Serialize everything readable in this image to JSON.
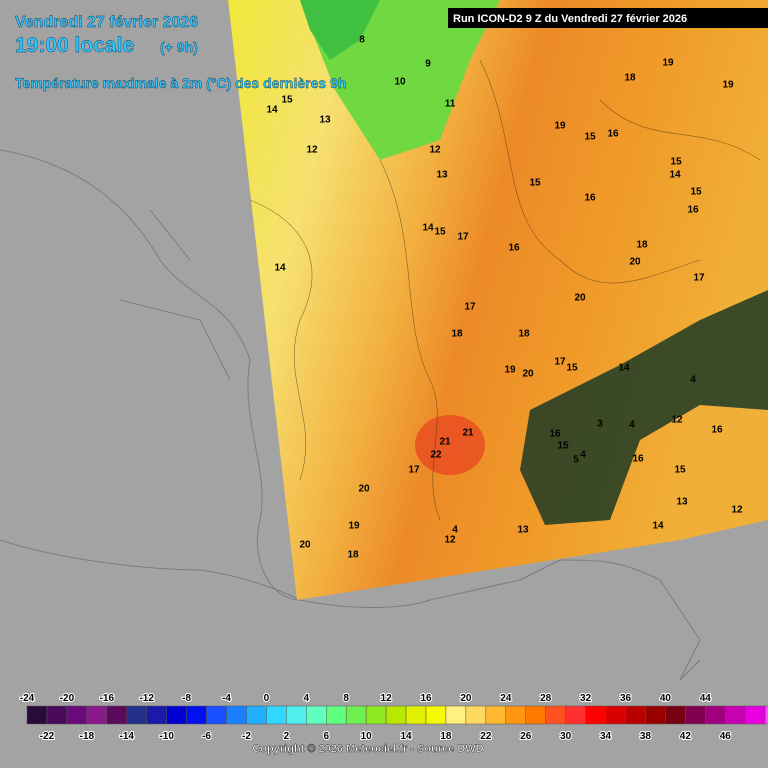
{
  "header": {
    "date": "Vendredi 27 février 2026",
    "time": "19:00 locale",
    "offset": "(+ 9h)",
    "product": "Température maximale à 2m (°C) des dernières 9h",
    "run": "Run ICON-D2 9 Z du Vendredi 27 février 2026"
  },
  "map": {
    "labels": [
      8,
      9,
      10,
      11,
      12,
      13,
      15,
      14,
      13,
      12,
      14,
      15,
      17,
      14,
      18,
      19,
      19,
      19,
      15,
      16,
      15,
      14,
      15,
      16,
      16,
      15,
      16,
      18,
      20,
      17,
      20,
      17,
      18,
      18,
      19,
      20,
      17,
      15,
      14,
      4,
      3,
      4,
      12,
      16,
      16,
      15,
      21,
      21,
      22,
      17,
      4,
      5,
      16,
      15,
      13,
      12,
      14,
      20,
      19,
      18,
      20,
      4,
      12,
      13
    ]
  },
  "colorbar": {
    "ticks_top": [
      -24,
      -20,
      -16,
      -12,
      -8,
      -4,
      0,
      4,
      8,
      12,
      16,
      20,
      24,
      28,
      32,
      36,
      40,
      44
    ],
    "ticks_bottom": [
      -22,
      -18,
      -14,
      -10,
      -6,
      -2,
      2,
      6,
      10,
      14,
      18,
      22,
      26,
      30,
      34,
      38,
      42,
      46
    ],
    "colors": [
      "#2a0a38",
      "#4a0a5a",
      "#6a0a7a",
      "#8a1a8a",
      "#5a0a5a",
      "#22308a",
      "#1a1aaa",
      "#0000d0",
      "#0010f0",
      "#1a50ff",
      "#1a80ff",
      "#20b0ff",
      "#30d8ff",
      "#50f0f0",
      "#60ffc0",
      "#60ff80",
      "#70f050",
      "#90e820",
      "#b8e800",
      "#e0f000",
      "#f8f800",
      "#fff080",
      "#ffd860",
      "#ffb830",
      "#ff9810",
      "#ff7800",
      "#ff5020",
      "#ff3030",
      "#ff0000",
      "#d80000",
      "#b80000",
      "#980000",
      "#780010",
      "#800050",
      "#a00080",
      "#c800b0",
      "#e800e0",
      "#ff50ff"
    ]
  },
  "footer": {
    "copyright": "Copyright © 2026 Meteociel.fr - Source DWD"
  }
}
